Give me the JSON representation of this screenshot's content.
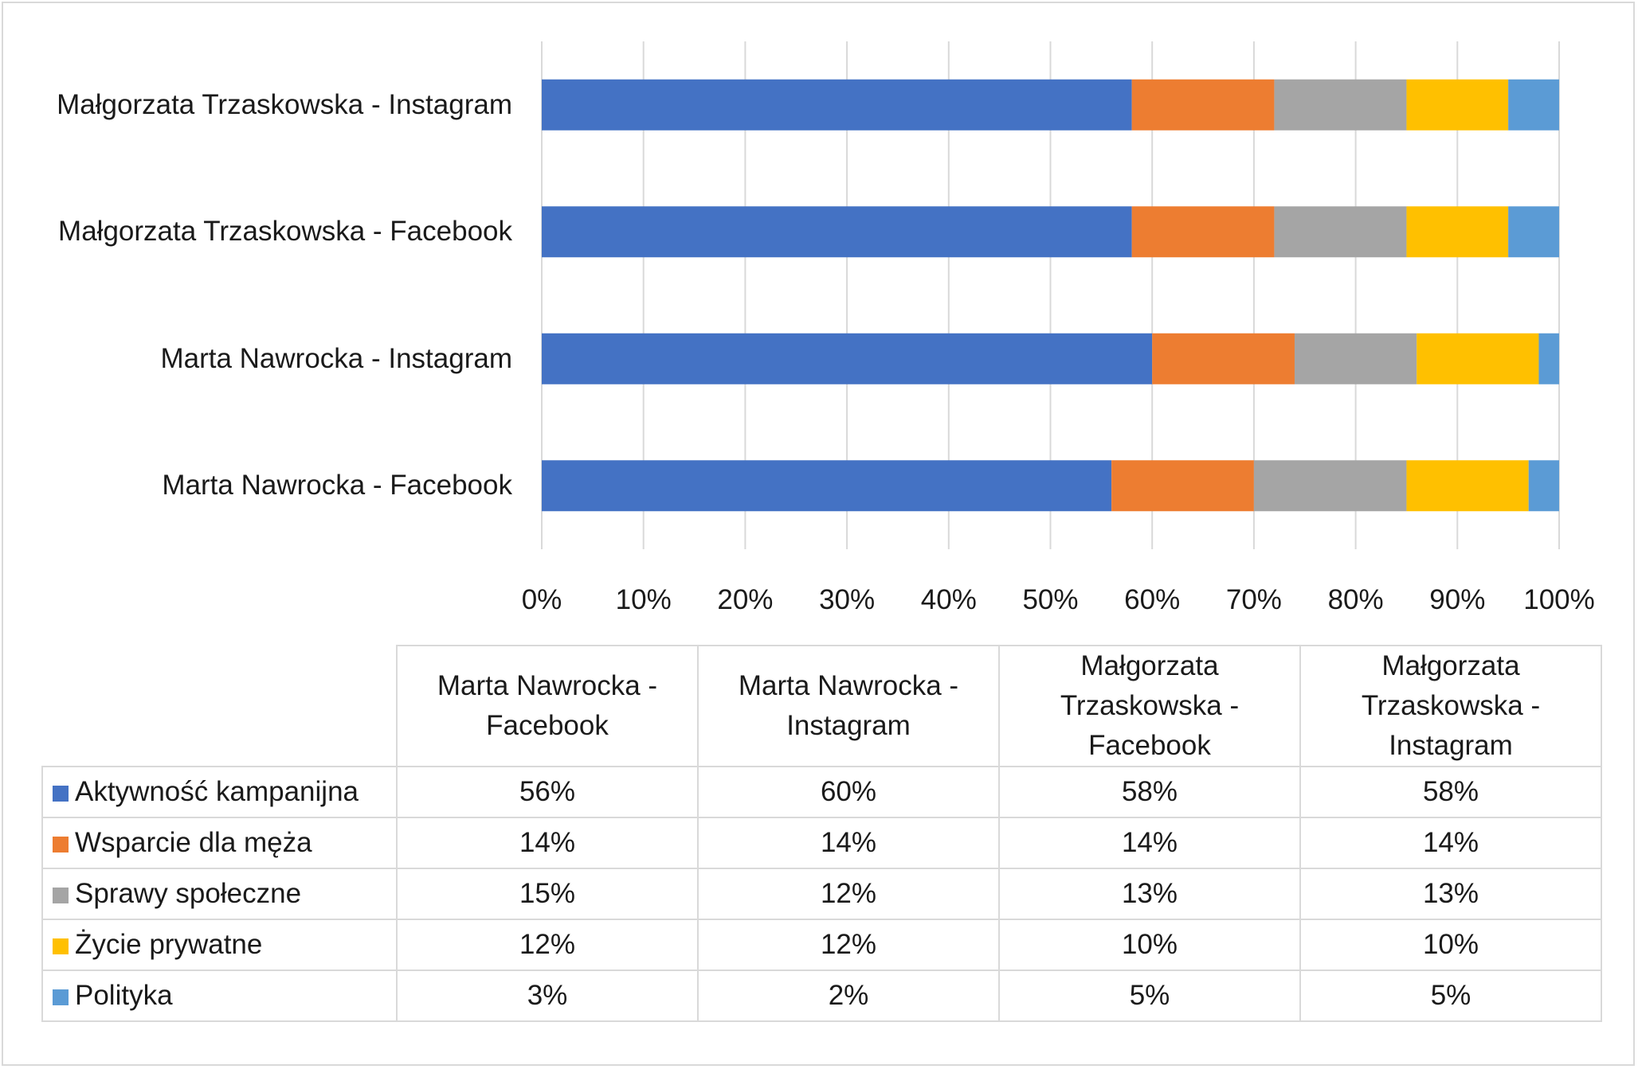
{
  "chart_data": {
    "type": "bar",
    "orientation": "horizontal",
    "stacked": "percent",
    "categories": [
      "Marta Nawrocka - Facebook",
      "Marta Nawrocka - Instagram",
      "Małgorzata Trzaskowska - Facebook",
      "Małgorzata Trzaskowska - Instagram"
    ],
    "series": [
      {
        "name": "Aktywność kampanijna",
        "values": [
          56,
          60,
          58,
          58
        ],
        "labels": [
          "56%",
          "60%",
          "58%",
          "58%"
        ],
        "color": "#4472C4"
      },
      {
        "name": "Wsparcie dla męża",
        "values": [
          14,
          14,
          14,
          14
        ],
        "labels": [
          "14%",
          "14%",
          "14%",
          "14%"
        ],
        "color": "#ED7D31"
      },
      {
        "name": "Sprawy społeczne",
        "values": [
          15,
          12,
          13,
          13
        ],
        "labels": [
          "15%",
          "12%",
          "13%",
          "13%"
        ],
        "color": "#A5A5A5"
      },
      {
        "name": "Życie prywatne",
        "values": [
          12,
          12,
          10,
          10
        ],
        "labels": [
          "12%",
          "12%",
          "10%",
          "10%"
        ],
        "color": "#FFC000"
      },
      {
        "name": "Polityka",
        "values": [
          3,
          2,
          5,
          5
        ],
        "labels": [
          "3%",
          "2%",
          "5%",
          "5%"
        ],
        "color": "#5B9BD5"
      }
    ],
    "xlim": [
      0,
      100
    ],
    "xticks": [
      "0%",
      "10%",
      "20%",
      "30%",
      "40%",
      "50%",
      "60%",
      "70%",
      "80%",
      "90%",
      "100%"
    ],
    "grid": "vertical",
    "legend": "data table below chart",
    "title": "",
    "xlabel": "",
    "ylabel": ""
  },
  "table": {
    "headers": [
      "Marta Nawrocka - Facebook",
      "Marta Nawrocka - Instagram",
      "Małgorzata Trzaskowska - Facebook",
      "Małgorzata Trzaskowska - Instagram"
    ]
  }
}
